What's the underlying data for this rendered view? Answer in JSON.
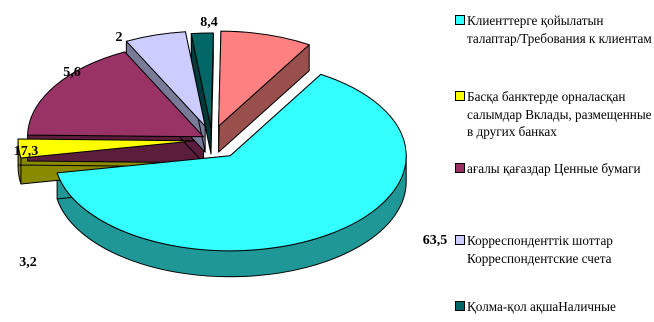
{
  "chart_data": {
    "type": "pie",
    "style": "3d-exploded",
    "slices": [
      {
        "label": "Клиенттерге қойылатын талаптар/Требования к клиентам",
        "value": 63.5,
        "value_label": "63,5",
        "color": "#33ffff",
        "side_color": "#1f9797"
      },
      {
        "label": "Басқа банктерде орналасқан салымдар Вклады, размещенные в других банках",
        "value": 3.2,
        "value_label": "3,2",
        "color": "#ffff00",
        "side_color": "#8a8a00"
      },
      {
        "label": "ағалы қағаздар Ценные бумаги",
        "value": 17.3,
        "value_label": "17,3",
        "color": "#993366",
        "side_color": "#5a1e3c"
      },
      {
        "label": "Корреспонденттік шоттар Корреспондентские счета",
        "value": 5.6,
        "value_label": "5,6",
        "color": "#ccccff",
        "side_color": "#7a7a99"
      },
      {
        "label": "Қолма-қол ақшаНаличные",
        "value": 2,
        "value_label": "2",
        "color": "#006666",
        "side_color": "#003a3a"
      },
      {
        "label": "",
        "value": 8.4,
        "value_label": "8,4",
        "color": "#ff8080",
        "side_color": "#99504c"
      }
    ],
    "legend_position": "right"
  }
}
